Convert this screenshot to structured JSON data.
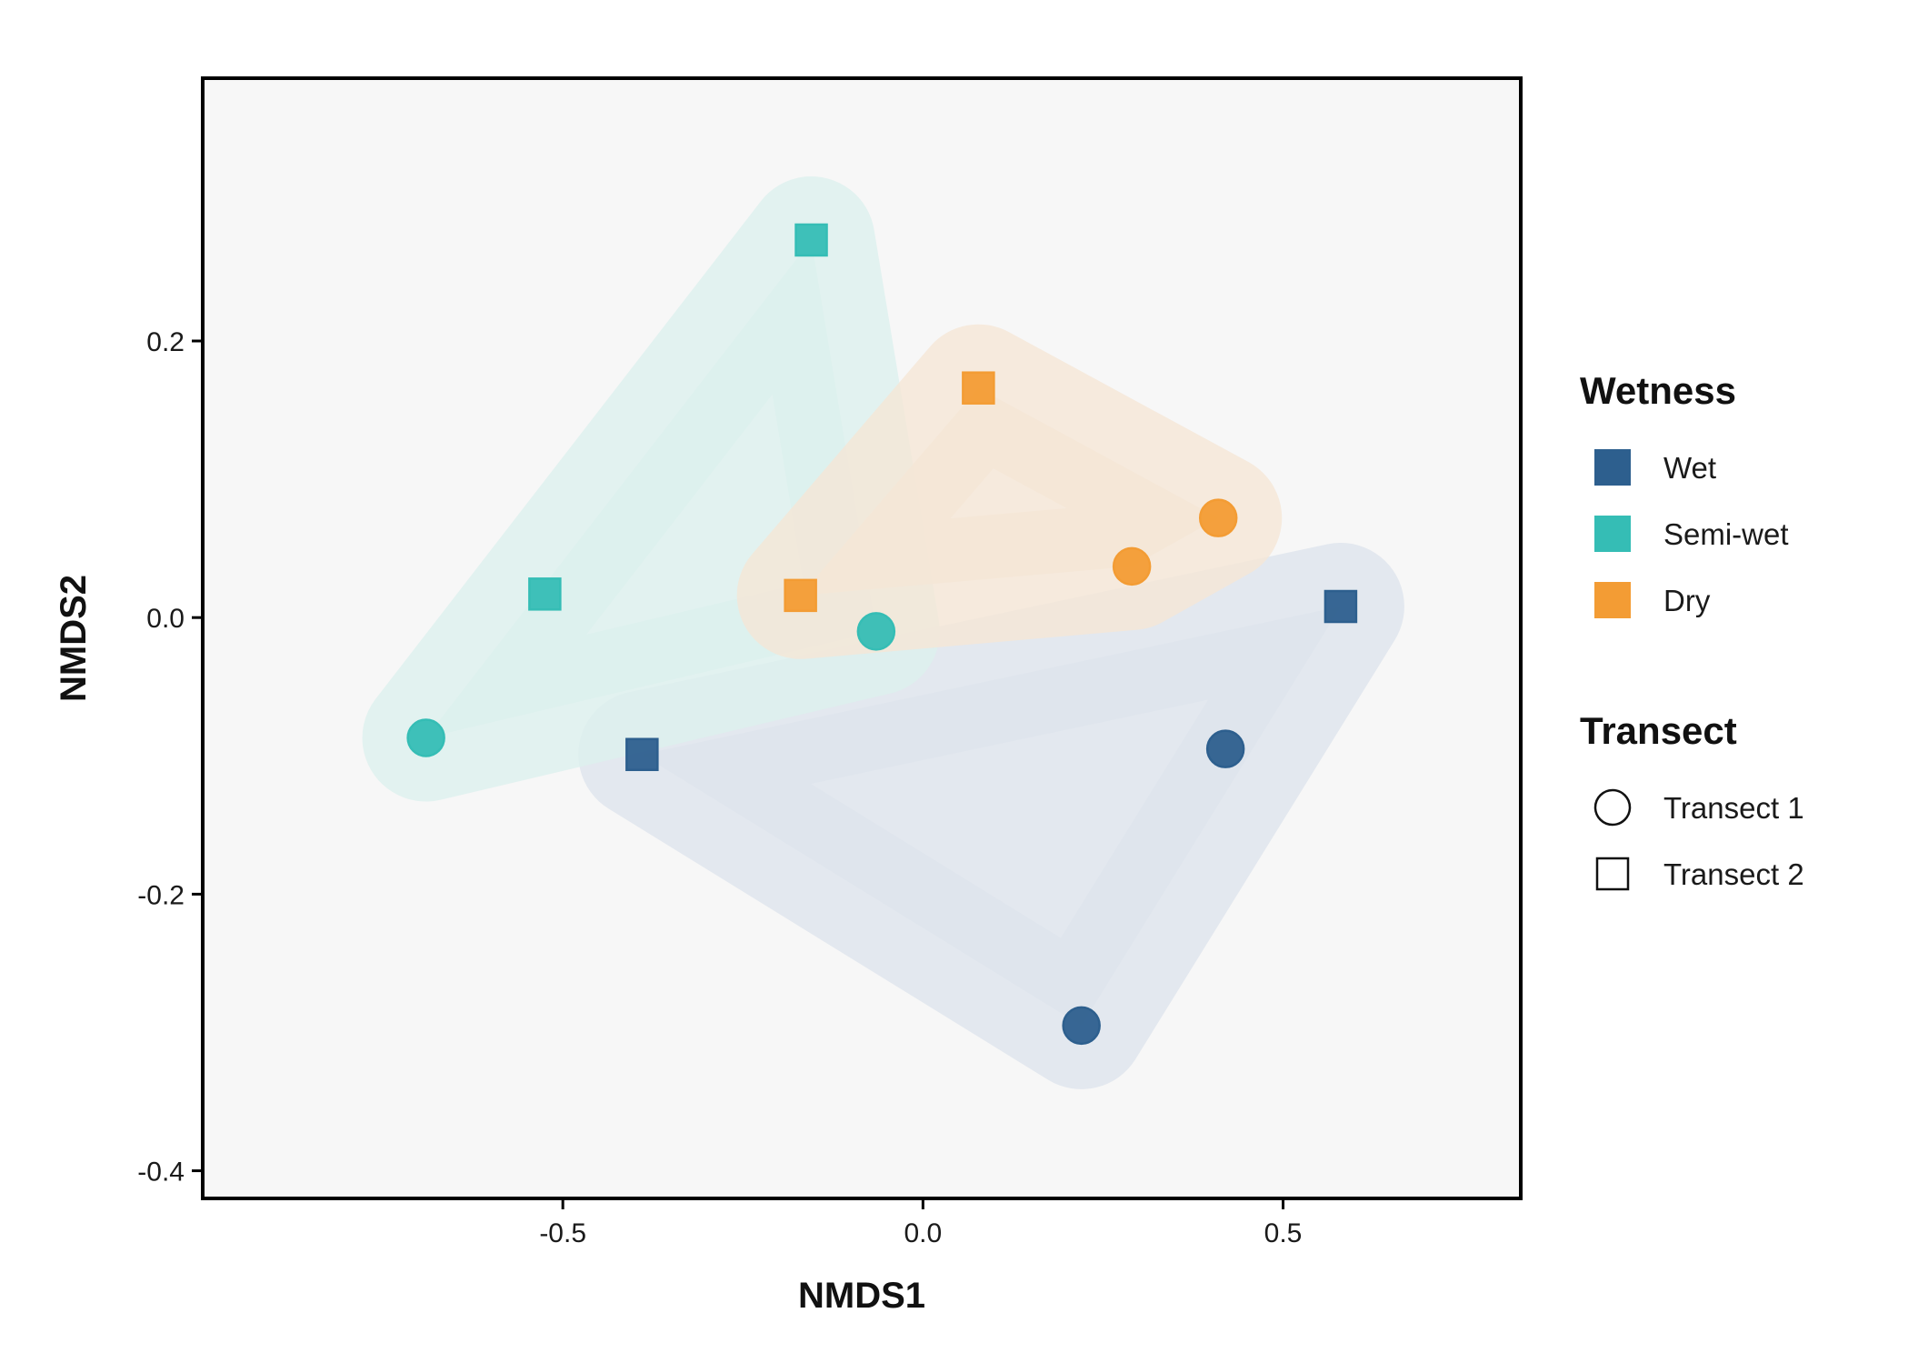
{
  "chart_data": {
    "type": "scatter",
    "title": "",
    "xlabel": "NMDS1",
    "ylabel": "NMDS2",
    "xlim": [
      -1.0,
      0.83
    ],
    "ylim": [
      -0.42,
      0.39
    ],
    "x_ticks": [
      -0.5,
      0.0,
      0.5
    ],
    "x_tick_labels": [
      "-0.5",
      "0.0",
      "0.5"
    ],
    "y_ticks": [
      -0.4,
      -0.2,
      0.0,
      0.2
    ],
    "y_tick_labels": [
      "-0.4",
      "-0.2",
      "0.0",
      "0.2"
    ],
    "grid": false,
    "legend_position": "right",
    "background_color": "#f7f7f7",
    "legends": [
      {
        "title": "Wetness",
        "entries": [
          {
            "label": "Wet",
            "color": "#2d5f8e"
          },
          {
            "label": "Semi-wet",
            "color": "#35bdb5"
          },
          {
            "label": "Dry",
            "color": "#f39c34"
          }
        ]
      },
      {
        "title": "Transect",
        "entries": [
          {
            "label": "Transect 1",
            "shape": "circle"
          },
          {
            "label": "Transect 2",
            "shape": "square"
          }
        ]
      }
    ],
    "series": [
      {
        "name": "Wet",
        "color": "#2d5f8e",
        "hull_color": "#dde3ec",
        "points": [
          {
            "x": 0.22,
            "y": -0.295,
            "transect": "Transect 1"
          },
          {
            "x": 0.42,
            "y": -0.095,
            "transect": "Transect 1"
          },
          {
            "x": 0.58,
            "y": 0.008,
            "transect": "Transect 2"
          },
          {
            "x": -0.39,
            "y": -0.099,
            "transect": "Transect 2"
          }
        ]
      },
      {
        "name": "Semi-wet",
        "color": "#35bdb5",
        "hull_color": "#dcf0ee",
        "points": [
          {
            "x": -0.69,
            "y": -0.087,
            "transect": "Transect 1"
          },
          {
            "x": -0.065,
            "y": -0.01,
            "transect": "Transect 1"
          },
          {
            "x": -0.525,
            "y": 0.017,
            "transect": "Transect 2"
          },
          {
            "x": -0.155,
            "y": 0.273,
            "transect": "Transect 2"
          }
        ]
      },
      {
        "name": "Dry",
        "color": "#f39c34",
        "hull_color": "#f5e6d6",
        "points": [
          {
            "x": 0.29,
            "y": 0.037,
            "transect": "Transect 1"
          },
          {
            "x": 0.41,
            "y": 0.072,
            "transect": "Transect 1"
          },
          {
            "x": -0.17,
            "y": 0.016,
            "transect": "Transect 2"
          },
          {
            "x": 0.077,
            "y": 0.166,
            "transect": "Transect 2"
          }
        ]
      }
    ]
  }
}
